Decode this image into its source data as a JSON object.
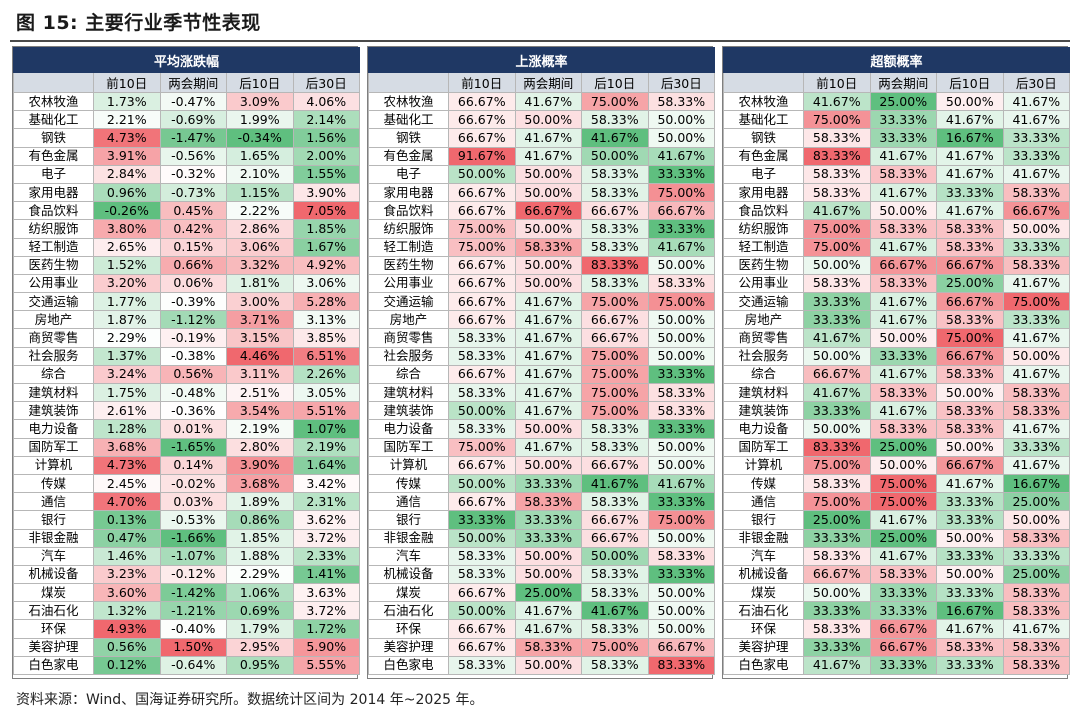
{
  "figure": {
    "title": "图 15:  主要行业季节性表现",
    "source": "资料来源：Wind、国海证券研究所。数据统计区间为 2014 年~2025 年。"
  },
  "table_columns": [
    "",
    "前10日",
    "两会期间",
    "后10日",
    "后30日"
  ],
  "industries": [
    "农林牧渔",
    "基础化工",
    "钢铁",
    "有色金属",
    "电子",
    "家用电器",
    "食品饮料",
    "纺织服饰",
    "轻工制造",
    "医药生物",
    "公用事业",
    "交通运输",
    "房地产",
    "商贸零售",
    "社会服务",
    "综合",
    "建筑材料",
    "建筑装饰",
    "电力设备",
    "国防军工",
    "计算机",
    "传媒",
    "通信",
    "银行",
    "非银金融",
    "汽车",
    "机械设备",
    "煤炭",
    "石油石化",
    "环保",
    "美容护理",
    "白色家电"
  ],
  "panels": [
    {
      "id": "avg",
      "title": "平均涨跌幅",
      "rows": [
        [
          "1.73%",
          "-0.47%",
          "3.09%",
          "4.06%"
        ],
        [
          "2.21%",
          "-0.69%",
          "1.99%",
          "2.14%"
        ],
        [
          "4.73%",
          "-1.47%",
          "-0.34%",
          "1.56%"
        ],
        [
          "3.91%",
          "-0.56%",
          "1.65%",
          "2.00%"
        ],
        [
          "2.84%",
          "-0.32%",
          "2.10%",
          "1.55%"
        ],
        [
          "0.96%",
          "-0.73%",
          "1.15%",
          "3.90%"
        ],
        [
          "-0.26%",
          "0.45%",
          "2.22%",
          "7.05%"
        ],
        [
          "3.80%",
          "0.42%",
          "2.86%",
          "1.85%"
        ],
        [
          "2.65%",
          "0.15%",
          "3.06%",
          "1.67%"
        ],
        [
          "1.52%",
          "0.66%",
          "3.32%",
          "4.92%"
        ],
        [
          "3.20%",
          "0.06%",
          "1.81%",
          "3.06%"
        ],
        [
          "1.77%",
          "-0.39%",
          "3.00%",
          "5.28%"
        ],
        [
          "1.87%",
          "-1.12%",
          "3.71%",
          "3.13%"
        ],
        [
          "2.29%",
          "-0.19%",
          "3.15%",
          "3.85%"
        ],
        [
          "1.37%",
          "-0.38%",
          "4.46%",
          "6.51%"
        ],
        [
          "3.24%",
          "0.56%",
          "3.11%",
          "2.26%"
        ],
        [
          "1.75%",
          "-0.48%",
          "2.51%",
          "3.05%"
        ],
        [
          "2.61%",
          "-0.36%",
          "3.54%",
          "5.51%"
        ],
        [
          "1.28%",
          "0.01%",
          "2.19%",
          "1.07%"
        ],
        [
          "3.68%",
          "-1.65%",
          "2.80%",
          "2.19%"
        ],
        [
          "4.73%",
          "0.14%",
          "3.90%",
          "1.64%"
        ],
        [
          "2.45%",
          "-0.02%",
          "3.68%",
          "3.42%"
        ],
        [
          "4.70%",
          "0.03%",
          "1.89%",
          "2.31%"
        ],
        [
          "0.13%",
          "-0.53%",
          "0.86%",
          "3.62%"
        ],
        [
          "0.47%",
          "-1.66%",
          "1.85%",
          "3.72%"
        ],
        [
          "1.46%",
          "-1.07%",
          "1.88%",
          "2.33%"
        ],
        [
          "3.23%",
          "-0.12%",
          "2.29%",
          "1.41%"
        ],
        [
          "3.60%",
          "-1.42%",
          "1.06%",
          "3.63%"
        ],
        [
          "1.32%",
          "-1.21%",
          "0.69%",
          "3.72%"
        ],
        [
          "4.93%",
          "-0.40%",
          "1.79%",
          "1.72%"
        ],
        [
          "0.56%",
          "1.50%",
          "2.95%",
          "5.90%"
        ],
        [
          "0.12%",
          "-0.64%",
          "0.95%",
          "5.55%"
        ]
      ]
    },
    {
      "id": "up",
      "title": "上涨概率",
      "rows": [
        [
          "66.67%",
          "41.67%",
          "75.00%",
          "58.33%"
        ],
        [
          "66.67%",
          "50.00%",
          "58.33%",
          "50.00%"
        ],
        [
          "66.67%",
          "41.67%",
          "41.67%",
          "50.00%"
        ],
        [
          "91.67%",
          "41.67%",
          "50.00%",
          "41.67%"
        ],
        [
          "50.00%",
          "50.00%",
          "58.33%",
          "33.33%"
        ],
        [
          "66.67%",
          "50.00%",
          "58.33%",
          "75.00%"
        ],
        [
          "66.67%",
          "66.67%",
          "66.67%",
          "66.67%"
        ],
        [
          "75.00%",
          "50.00%",
          "58.33%",
          "33.33%"
        ],
        [
          "75.00%",
          "58.33%",
          "58.33%",
          "41.67%"
        ],
        [
          "66.67%",
          "50.00%",
          "83.33%",
          "50.00%"
        ],
        [
          "66.67%",
          "50.00%",
          "58.33%",
          "58.33%"
        ],
        [
          "66.67%",
          "41.67%",
          "75.00%",
          "75.00%"
        ],
        [
          "66.67%",
          "41.67%",
          "66.67%",
          "50.00%"
        ],
        [
          "58.33%",
          "41.67%",
          "66.67%",
          "50.00%"
        ],
        [
          "58.33%",
          "41.67%",
          "75.00%",
          "50.00%"
        ],
        [
          "66.67%",
          "41.67%",
          "75.00%",
          "33.33%"
        ],
        [
          "58.33%",
          "41.67%",
          "75.00%",
          "58.33%"
        ],
        [
          "50.00%",
          "41.67%",
          "75.00%",
          "58.33%"
        ],
        [
          "58.33%",
          "50.00%",
          "58.33%",
          "33.33%"
        ],
        [
          "75.00%",
          "41.67%",
          "58.33%",
          "50.00%"
        ],
        [
          "66.67%",
          "50.00%",
          "66.67%",
          "50.00%"
        ],
        [
          "50.00%",
          "33.33%",
          "41.67%",
          "41.67%"
        ],
        [
          "66.67%",
          "58.33%",
          "58.33%",
          "33.33%"
        ],
        [
          "33.33%",
          "33.33%",
          "66.67%",
          "75.00%"
        ],
        [
          "50.00%",
          "33.33%",
          "66.67%",
          "50.00%"
        ],
        [
          "58.33%",
          "50.00%",
          "50.00%",
          "58.33%"
        ],
        [
          "58.33%",
          "50.00%",
          "58.33%",
          "33.33%"
        ],
        [
          "66.67%",
          "25.00%",
          "58.33%",
          "50.00%"
        ],
        [
          "50.00%",
          "41.67%",
          "41.67%",
          "50.00%"
        ],
        [
          "66.67%",
          "41.67%",
          "58.33%",
          "50.00%"
        ],
        [
          "66.67%",
          "58.33%",
          "75.00%",
          "66.67%"
        ],
        [
          "58.33%",
          "50.00%",
          "58.33%",
          "83.33%"
        ]
      ]
    },
    {
      "id": "excess",
      "title": "超额概率",
      "rows": [
        [
          "41.67%",
          "25.00%",
          "50.00%",
          "41.67%"
        ],
        [
          "75.00%",
          "33.33%",
          "41.67%",
          "41.67%"
        ],
        [
          "58.33%",
          "33.33%",
          "16.67%",
          "33.33%"
        ],
        [
          "83.33%",
          "41.67%",
          "41.67%",
          "33.33%"
        ],
        [
          "58.33%",
          "58.33%",
          "41.67%",
          "41.67%"
        ],
        [
          "58.33%",
          "41.67%",
          "33.33%",
          "58.33%"
        ],
        [
          "41.67%",
          "50.00%",
          "41.67%",
          "66.67%"
        ],
        [
          "75.00%",
          "58.33%",
          "58.33%",
          "50.00%"
        ],
        [
          "75.00%",
          "41.67%",
          "58.33%",
          "33.33%"
        ],
        [
          "50.00%",
          "66.67%",
          "66.67%",
          "58.33%"
        ],
        [
          "58.33%",
          "58.33%",
          "25.00%",
          "41.67%"
        ],
        [
          "33.33%",
          "41.67%",
          "66.67%",
          "75.00%"
        ],
        [
          "33.33%",
          "41.67%",
          "58.33%",
          "33.33%"
        ],
        [
          "41.67%",
          "50.00%",
          "75.00%",
          "41.67%"
        ],
        [
          "50.00%",
          "33.33%",
          "66.67%",
          "50.00%"
        ],
        [
          "66.67%",
          "41.67%",
          "58.33%",
          "41.67%"
        ],
        [
          "41.67%",
          "58.33%",
          "50.00%",
          "58.33%"
        ],
        [
          "33.33%",
          "41.67%",
          "58.33%",
          "58.33%"
        ],
        [
          "50.00%",
          "58.33%",
          "58.33%",
          "41.67%"
        ],
        [
          "83.33%",
          "25.00%",
          "50.00%",
          "33.33%"
        ],
        [
          "75.00%",
          "50.00%",
          "66.67%",
          "41.67%"
        ],
        [
          "58.33%",
          "75.00%",
          "41.67%",
          "16.67%"
        ],
        [
          "75.00%",
          "75.00%",
          "33.33%",
          "25.00%"
        ],
        [
          "25.00%",
          "41.67%",
          "33.33%",
          "50.00%"
        ],
        [
          "33.33%",
          "25.00%",
          "50.00%",
          "58.33%"
        ],
        [
          "58.33%",
          "41.67%",
          "33.33%",
          "33.33%"
        ],
        [
          "66.67%",
          "58.33%",
          "50.00%",
          "25.00%"
        ],
        [
          "50.00%",
          "33.33%",
          "33.33%",
          "58.33%"
        ],
        [
          "33.33%",
          "33.33%",
          "16.67%",
          "58.33%"
        ],
        [
          "58.33%",
          "66.67%",
          "41.67%",
          "41.67%"
        ],
        [
          "33.33%",
          "66.67%",
          "58.33%",
          "58.33%"
        ],
        [
          "41.67%",
          "33.33%",
          "33.33%",
          "58.33%"
        ]
      ]
    }
  ],
  "colors": {
    "header_bar": "#1f3864",
    "column_header_bg": "#d6dce4",
    "high_value": "#f0686e",
    "mid_value": "#ffffff",
    "low_value": "#5fbf7f"
  }
}
